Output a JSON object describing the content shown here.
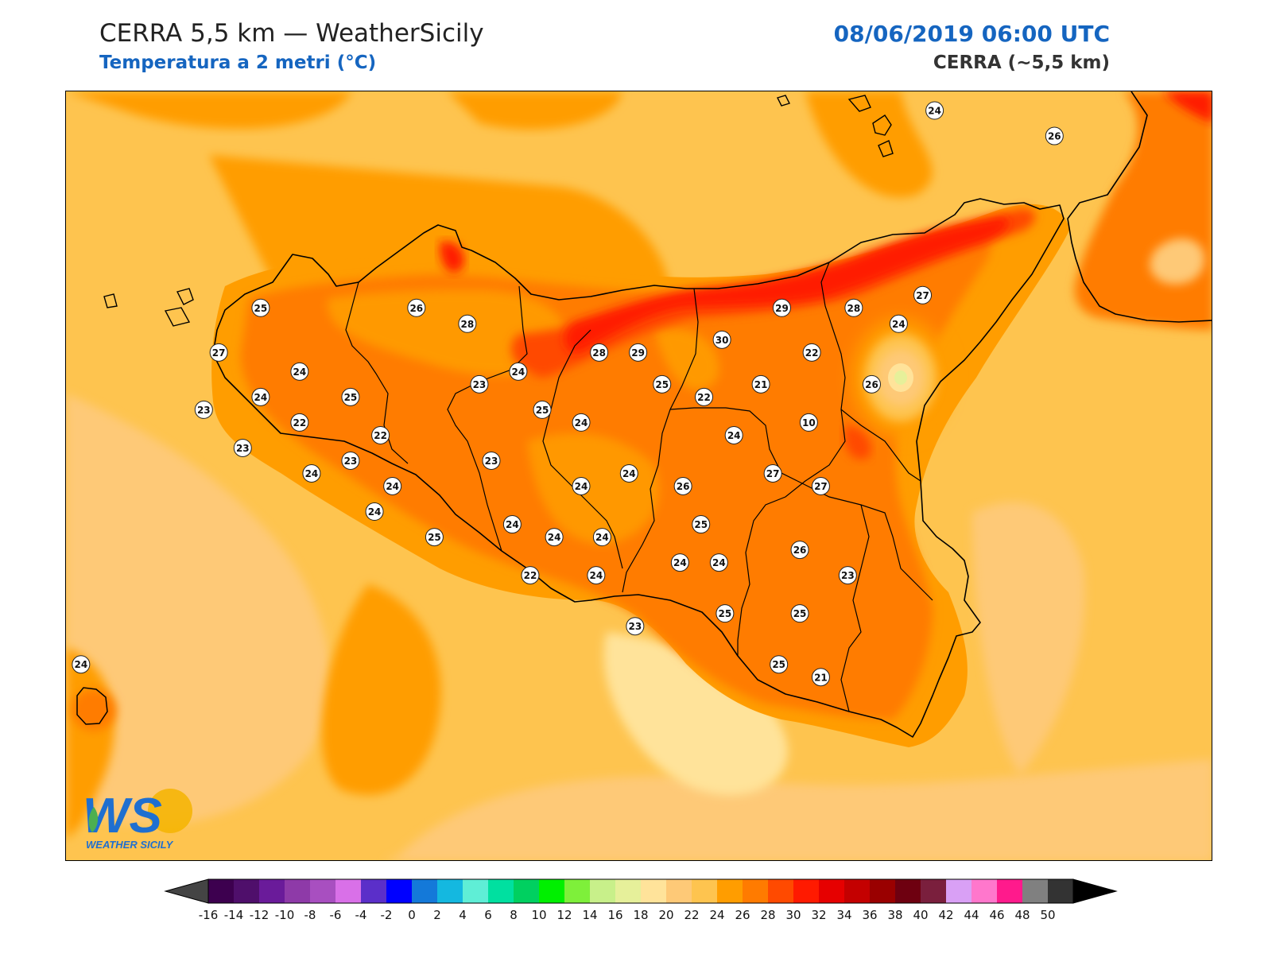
{
  "header": {
    "title": "CERRA 5,5 km — WeatherSicily",
    "subtitle": "Temperatura a 2 metri (°C)",
    "datetime": "08/06/2019 06:00 UTC",
    "model": "CERRA (~5,5 km)"
  },
  "logo": {
    "mark": "WS",
    "name": "WEATHER SICILY"
  },
  "colors": {
    "sea_dominant": "#fec44f",
    "land_dominant": "#ff7b00",
    "hot_band": "#ff1a00",
    "text_blue": "#1565c0"
  },
  "colorbar": {
    "ticks": [
      "-16",
      "-14",
      "-12",
      "-10",
      "-8",
      "-6",
      "-4",
      "-2",
      "0",
      "2",
      "4",
      "6",
      "8",
      "10",
      "12",
      "14",
      "16",
      "18",
      "20",
      "22",
      "24",
      "26",
      "28",
      "30",
      "32",
      "34",
      "36",
      "38",
      "40",
      "42",
      "44",
      "46",
      "48",
      "50"
    ],
    "colors": [
      "#3d004f",
      "#4f0f6b",
      "#6a1b9a",
      "#8e3aa8",
      "#a84fc0",
      "#d970e8",
      "#5b2fc9",
      "#0000ff",
      "#1479d9",
      "#14b8e0",
      "#5feed6",
      "#00e0a0",
      "#00d060",
      "#00f000",
      "#7ef03a",
      "#c8f08a",
      "#e6f09a",
      "#ffe39a",
      "#fec977",
      "#fec44f",
      "#ff9d00",
      "#ff7b00",
      "#ff4a00",
      "#ff1a00",
      "#e60000",
      "#c40000",
      "#9a0000",
      "#6e0010",
      "#7a1f3d",
      "#d9a0f5",
      "#ff77cc",
      "#ff1a8c",
      "#808080",
      "#333333"
    ],
    "underflow_color": "#444444",
    "overflow_color": "#000000"
  },
  "stations": [
    {
      "v": "24",
      "lon": 14.85,
      "lat": 38.8
    },
    {
      "v": "26",
      "lon": 15.25,
      "lat": 38.72
    },
    {
      "v": "25",
      "lon": 12.6,
      "lat": 38.18
    },
    {
      "v": "26",
      "lon": 13.12,
      "lat": 38.18
    },
    {
      "v": "28",
      "lon": 13.29,
      "lat": 38.13
    },
    {
      "v": "27",
      "lon": 12.46,
      "lat": 38.04
    },
    {
      "v": "24",
      "lon": 12.73,
      "lat": 37.98
    },
    {
      "v": "24",
      "lon": 13.46,
      "lat": 37.98
    },
    {
      "v": "23",
      "lon": 13.33,
      "lat": 37.94
    },
    {
      "v": "28",
      "lon": 13.73,
      "lat": 38.04
    },
    {
      "v": "29",
      "lon": 13.86,
      "lat": 38.04
    },
    {
      "v": "30",
      "lon": 14.14,
      "lat": 38.08
    },
    {
      "v": "29",
      "lon": 14.34,
      "lat": 38.18
    },
    {
      "v": "28",
      "lon": 14.58,
      "lat": 38.18
    },
    {
      "v": "27",
      "lon": 14.81,
      "lat": 38.22
    },
    {
      "v": "24",
      "lon": 14.73,
      "lat": 38.13
    },
    {
      "v": "22",
      "lon": 14.44,
      "lat": 38.04
    },
    {
      "v": "24",
      "lon": 12.6,
      "lat": 37.9
    },
    {
      "v": "25",
      "lon": 12.9,
      "lat": 37.9
    },
    {
      "v": "25",
      "lon": 13.94,
      "lat": 37.94
    },
    {
      "v": "22",
      "lon": 14.08,
      "lat": 37.9
    },
    {
      "v": "21",
      "lon": 14.27,
      "lat": 37.94
    },
    {
      "v": "26",
      "lon": 14.64,
      "lat": 37.94
    },
    {
      "v": "23",
      "lon": 12.41,
      "lat": 37.86
    },
    {
      "v": "22",
      "lon": 12.73,
      "lat": 37.82
    },
    {
      "v": "25",
      "lon": 13.54,
      "lat": 37.86
    },
    {
      "v": "24",
      "lon": 13.67,
      "lat": 37.82
    },
    {
      "v": "10",
      "lon": 14.43,
      "lat": 37.82
    },
    {
      "v": "24",
      "lon": 14.18,
      "lat": 37.78
    },
    {
      "v": "23",
      "lon": 12.54,
      "lat": 37.74
    },
    {
      "v": "22",
      "lon": 13.0,
      "lat": 37.78
    },
    {
      "v": "23",
      "lon": 12.9,
      "lat": 37.7
    },
    {
      "v": "23",
      "lon": 13.37,
      "lat": 37.7
    },
    {
      "v": "24",
      "lon": 12.77,
      "lat": 37.66
    },
    {
      "v": "24",
      "lon": 13.04,
      "lat": 37.62
    },
    {
      "v": "24",
      "lon": 13.67,
      "lat": 37.62
    },
    {
      "v": "24",
      "lon": 13.83,
      "lat": 37.66
    },
    {
      "v": "26",
      "lon": 14.01,
      "lat": 37.62
    },
    {
      "v": "27",
      "lon": 14.31,
      "lat": 37.66
    },
    {
      "v": "27",
      "lon": 14.47,
      "lat": 37.62
    },
    {
      "v": "24",
      "lon": 12.98,
      "lat": 37.54
    },
    {
      "v": "24",
      "lon": 13.44,
      "lat": 37.5
    },
    {
      "v": "25",
      "lon": 13.18,
      "lat": 37.46
    },
    {
      "v": "24",
      "lon": 13.58,
      "lat": 37.46
    },
    {
      "v": "24",
      "lon": 13.74,
      "lat": 37.46
    },
    {
      "v": "25",
      "lon": 14.07,
      "lat": 37.5
    },
    {
      "v": "26",
      "lon": 14.4,
      "lat": 37.42
    },
    {
      "v": "24",
      "lon": 14.0,
      "lat": 37.38
    },
    {
      "v": "24",
      "lon": 14.13,
      "lat": 37.38
    },
    {
      "v": "22",
      "lon": 13.5,
      "lat": 37.34
    },
    {
      "v": "24",
      "lon": 13.72,
      "lat": 37.34
    },
    {
      "v": "23",
      "lon": 14.56,
      "lat": 37.34
    },
    {
      "v": "25",
      "lon": 14.15,
      "lat": 37.22
    },
    {
      "v": "25",
      "lon": 14.4,
      "lat": 37.22
    },
    {
      "v": "23",
      "lon": 13.85,
      "lat": 37.18
    },
    {
      "v": "25",
      "lon": 14.33,
      "lat": 37.06
    },
    {
      "v": "21",
      "lon": 14.47,
      "lat": 37.02
    },
    {
      "v": "24",
      "lon": 12.0,
      "lat": 37.06
    }
  ]
}
